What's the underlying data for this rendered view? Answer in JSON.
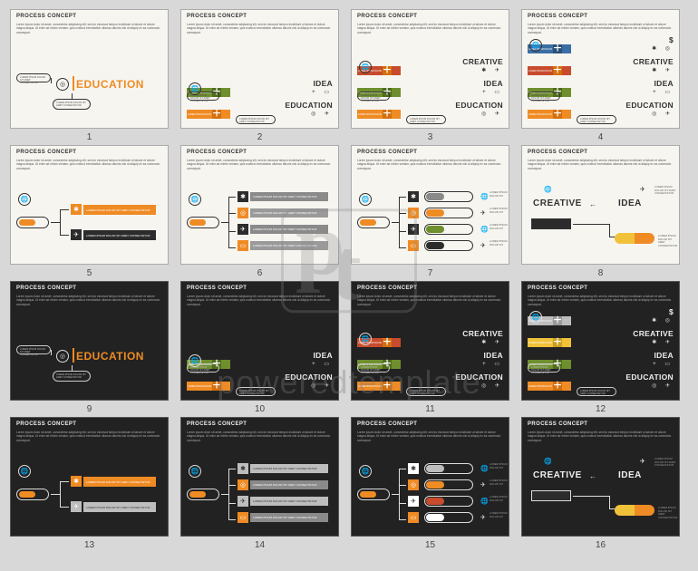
{
  "watermark": {
    "logo_letters": "pt",
    "text": "poweredtemplate"
  },
  "slide_title": "PROCESS CONCEPT",
  "lorem_short": "Lorem ipsum dolor sit amet, consectetur adipiscing elit, sed do eiusmod tempor incididunt ut labore et dolore magna aliqua. Ut enim ad minim veniam, quis nostrud exercitation ullamco laboris nisi ut aliquip ex ea commodo consequat.",
  "lorem_mini": "LOREM IPSUM DOLOR SIT AMET CONSECTETUR",
  "words": {
    "education": "EDUCATION",
    "idea": "IDEA",
    "creative": "CREATIVE",
    "dollar": "$"
  },
  "icons": {
    "compass": "◎",
    "globe": "🌐",
    "paperplane": "✈",
    "gear": "✱",
    "briefcase": "▭",
    "plus": "+",
    "dollar": "$"
  },
  "colors": {
    "orange": "#ef8b24",
    "orange_dark": "#d46f0b",
    "green": "#6f8f2e",
    "green_dark": "#4f6d1a",
    "blue": "#3b6ea5",
    "blue_dark": "#2a4f77",
    "yellow": "#f0c23a",
    "yellow_dark": "#caa021",
    "black": "#2c2c2c",
    "grey": "#8a8a8a",
    "grey_light": "#bdbdbd",
    "grey_mid": "#9a9a9a",
    "red": "#c74b2c",
    "white": "#ffffff"
  },
  "slides": [
    {
      "n": 1,
      "theme": "light",
      "variant": "single"
    },
    {
      "n": 2,
      "theme": "light",
      "variant": "stack2"
    },
    {
      "n": 3,
      "theme": "light",
      "variant": "stack3"
    },
    {
      "n": 4,
      "theme": "light",
      "variant": "stack4"
    },
    {
      "n": 5,
      "theme": "light",
      "variant": "branch2"
    },
    {
      "n": 6,
      "theme": "light",
      "variant": "branch4"
    },
    {
      "n": 7,
      "theme": "light",
      "variant": "branch4b"
    },
    {
      "n": 8,
      "theme": "light",
      "variant": "loop"
    },
    {
      "n": 9,
      "theme": "dark",
      "variant": "single"
    },
    {
      "n": 10,
      "theme": "dark",
      "variant": "stack2"
    },
    {
      "n": 11,
      "theme": "dark",
      "variant": "stack3"
    },
    {
      "n": 12,
      "theme": "dark",
      "variant": "stack4"
    },
    {
      "n": 13,
      "theme": "dark",
      "variant": "branch2"
    },
    {
      "n": 14,
      "theme": "dark",
      "variant": "branch4"
    },
    {
      "n": 15,
      "theme": "dark",
      "variant": "branch4b"
    },
    {
      "n": 16,
      "theme": "dark",
      "variant": "loop"
    }
  ],
  "stack_rows": {
    "education": {
      "word": "EDUCATION",
      "color_key": "orange",
      "seg2_key": "orange_dark",
      "icons": "◎  ✈"
    },
    "idea": {
      "word": "IDEA",
      "color_key": "green",
      "seg2_key": "green_dark",
      "icons": "+  ▭"
    },
    "creative": {
      "word": "CREATIVE",
      "color_key": "red",
      "seg2_key": "orange_dark",
      "icons": "✱  ✈"
    },
    "top": {
      "word": "$",
      "color_key": "blue",
      "seg2_key": "blue_dark",
      "icons": "✱  ◎"
    }
  },
  "stack4_dark_overrides": {
    "creative_color_key": "yellow",
    "creative_seg2_key": "yellow_dark",
    "top_color_key": "grey_light",
    "top_seg2_key": "grey_mid"
  },
  "branch2": {
    "pill_accent_key": "orange",
    "rows": [
      {
        "chip_key": "orange",
        "icon": "✱",
        "bar_key": "orange"
      },
      {
        "chip_key": "black",
        "icon": "✈",
        "bar_key": "black"
      }
    ]
  },
  "branch2_dark": {
    "rows": [
      {
        "chip_key": "orange",
        "icon": "✱",
        "bar_key": "orange"
      },
      {
        "chip_key": "grey_light",
        "icon": "✈",
        "bar_key": "grey_light"
      }
    ]
  },
  "branch4": {
    "pill_accent_key": "orange",
    "rows": [
      {
        "chip_key": "black",
        "icon": "✱",
        "bar_key": "grey"
      },
      {
        "chip_key": "orange",
        "icon": "◎",
        "bar_key": "grey_mid"
      },
      {
        "chip_key": "black",
        "icon": "✈",
        "bar_key": "grey"
      },
      {
        "chip_key": "orange",
        "icon": "▭",
        "bar_key": "grey_mid"
      }
    ]
  },
  "branch4b": {
    "pill_accent_key": "orange",
    "rows": [
      {
        "chip_key": "black",
        "icon": "✱"
      },
      {
        "chip_key": "orange",
        "icon": "◎"
      },
      {
        "chip_key": "black",
        "icon": "✈"
      },
      {
        "chip_key": "orange",
        "icon": "▭"
      }
    ],
    "pill_colors": [
      "grey",
      "orange",
      "green",
      "black"
    ]
  },
  "branch4b_dark": {
    "pill_colors": [
      "grey_light",
      "orange",
      "red",
      "white"
    ]
  },
  "loop": {
    "left_word": "CREATIVE",
    "right_word": "IDEA",
    "pill_left_key": "yellow",
    "pill_right_key": "orange",
    "icons": {
      "globe": "🌐",
      "paperplane": "✈"
    }
  }
}
